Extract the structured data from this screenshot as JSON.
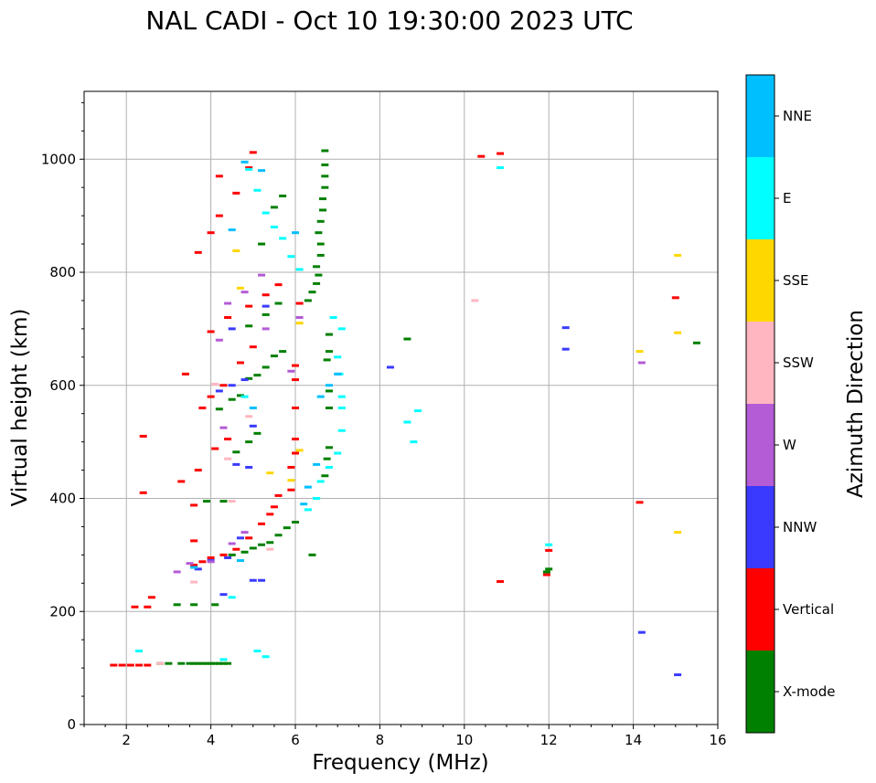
{
  "chart_data": {
    "type": "scatter",
    "title": "NAL CADI - Oct 10 19:30:00 2023 UTC",
    "xlabel": "Frequency (MHz)",
    "ylabel": "Virtual height (km)",
    "xlim": [
      1,
      16
    ],
    "ylim": [
      0,
      1120
    ],
    "xticks": [
      2,
      4,
      6,
      8,
      10,
      12,
      14,
      16
    ],
    "yticks": [
      0,
      200,
      400,
      600,
      800,
      1000
    ],
    "grid": true,
    "colorbar": {
      "label": "Azimuth Direction",
      "categories": [
        "X-mode",
        "Vertical",
        "NNW",
        "W",
        "SSW",
        "SSE",
        "E",
        "NNE"
      ],
      "colors": [
        "#008000",
        "#ff0000",
        "#3a3aff",
        "#b45bd6",
        "#ffb6c1",
        "#ffd700",
        "#00ffff",
        "#00bfff"
      ]
    },
    "series": [
      {
        "name": "X-mode",
        "color": "#008000",
        "points": [
          [
            3.5,
            108
          ],
          [
            3.6,
            108
          ],
          [
            3.7,
            108
          ],
          [
            3.8,
            108
          ],
          [
            3.9,
            108
          ],
          [
            4.0,
            108
          ],
          [
            4.1,
            108
          ],
          [
            4.2,
            108
          ],
          [
            4.3,
            108
          ],
          [
            4.4,
            108
          ],
          [
            3.3,
            108
          ],
          [
            3.0,
            108
          ],
          [
            2.8,
            108
          ],
          [
            4.1,
            212
          ],
          [
            3.6,
            212
          ],
          [
            3.2,
            212
          ],
          [
            4.5,
            300
          ],
          [
            4.8,
            305
          ],
          [
            5.0,
            312
          ],
          [
            5.2,
            318
          ],
          [
            5.4,
            322
          ],
          [
            5.6,
            335
          ],
          [
            5.8,
            348
          ],
          [
            6.0,
            358
          ],
          [
            3.9,
            395
          ],
          [
            4.3,
            395
          ],
          [
            4.6,
            482
          ],
          [
            4.9,
            500
          ],
          [
            5.1,
            515
          ],
          [
            4.2,
            558
          ],
          [
            4.5,
            575
          ],
          [
            4.7,
            582
          ],
          [
            4.9,
            612
          ],
          [
            5.1,
            618
          ],
          [
            5.3,
            632
          ],
          [
            5.5,
            652
          ],
          [
            5.7,
            660
          ],
          [
            4.9,
            705
          ],
          [
            5.3,
            725
          ],
          [
            5.6,
            745
          ],
          [
            5.2,
            850
          ],
          [
            5.5,
            915
          ],
          [
            5.7,
            935
          ],
          [
            6.3,
            750
          ],
          [
            6.4,
            765
          ],
          [
            6.5,
            780
          ],
          [
            6.55,
            795
          ],
          [
            6.5,
            810
          ],
          [
            6.6,
            830
          ],
          [
            6.6,
            850
          ],
          [
            6.55,
            870
          ],
          [
            6.6,
            890
          ],
          [
            6.65,
            910
          ],
          [
            6.65,
            930
          ],
          [
            6.7,
            950
          ],
          [
            6.7,
            970
          ],
          [
            6.7,
            990
          ],
          [
            6.7,
            1015
          ],
          [
            6.7,
            440
          ],
          [
            6.75,
            470
          ],
          [
            6.8,
            490
          ],
          [
            6.8,
            560
          ],
          [
            6.8,
            590
          ],
          [
            6.75,
            645
          ],
          [
            6.8,
            660
          ],
          [
            6.8,
            690
          ],
          [
            6.4,
            300
          ],
          [
            8.65,
            682
          ],
          [
            11.95,
            270
          ],
          [
            12.0,
            275
          ],
          [
            15.5,
            675
          ]
        ]
      },
      {
        "name": "Vertical",
        "color": "#ff0000",
        "points": [
          [
            1.7,
            105
          ],
          [
            1.9,
            105
          ],
          [
            2.1,
            105
          ],
          [
            2.3,
            105
          ],
          [
            2.5,
            105
          ],
          [
            2.2,
            208
          ],
          [
            2.5,
            208
          ],
          [
            3.6,
            282
          ],
          [
            3.8,
            288
          ],
          [
            4.0,
            295
          ],
          [
            4.3,
            300
          ],
          [
            4.6,
            310
          ],
          [
            4.9,
            330
          ],
          [
            5.2,
            355
          ],
          [
            5.4,
            372
          ],
          [
            5.5,
            385
          ],
          [
            5.6,
            405
          ],
          [
            3.6,
            388
          ],
          [
            2.4,
            510
          ],
          [
            3.3,
            430
          ],
          [
            3.7,
            450
          ],
          [
            4.1,
            488
          ],
          [
            4.4,
            505
          ],
          [
            3.8,
            560
          ],
          [
            4.0,
            580
          ],
          [
            4.3,
            600
          ],
          [
            4.7,
            640
          ],
          [
            5.0,
            668
          ],
          [
            4.0,
            695
          ],
          [
            4.4,
            720
          ],
          [
            4.9,
            740
          ],
          [
            5.3,
            760
          ],
          [
            5.6,
            778
          ],
          [
            3.7,
            835
          ],
          [
            4.0,
            870
          ],
          [
            4.2,
            900
          ],
          [
            4.6,
            940
          ],
          [
            4.9,
            985
          ],
          [
            5.0,
            1012
          ],
          [
            4.2,
            970
          ],
          [
            5.9,
            415
          ],
          [
            5.9,
            455
          ],
          [
            6.0,
            480
          ],
          [
            6.0,
            505
          ],
          [
            6.0,
            560
          ],
          [
            6.0,
            610
          ],
          [
            6.1,
            745
          ],
          [
            6.0,
            635
          ],
          [
            2.4,
            410
          ],
          [
            3.4,
            620
          ],
          [
            3.6,
            325
          ],
          [
            2.6,
            225
          ],
          [
            10.4,
            1005
          ],
          [
            10.85,
            1010
          ],
          [
            10.85,
            253
          ],
          [
            11.95,
            265
          ],
          [
            12.0,
            308
          ],
          [
            14.15,
            393
          ],
          [
            15.0,
            755
          ]
        ]
      },
      {
        "name": "NNW",
        "color": "#3a3aff",
        "points": [
          [
            3.7,
            275
          ],
          [
            4.0,
            290
          ],
          [
            4.4,
            295
          ],
          [
            4.7,
            330
          ],
          [
            5.0,
            255
          ],
          [
            5.2,
            255
          ],
          [
            4.6,
            460
          ],
          [
            4.9,
            455
          ],
          [
            4.2,
            590
          ],
          [
            4.5,
            600
          ],
          [
            4.8,
            610
          ],
          [
            5.0,
            528
          ],
          [
            4.3,
            230
          ],
          [
            4.5,
            700
          ],
          [
            5.3,
            740
          ],
          [
            8.25,
            632
          ],
          [
            12.4,
            702
          ],
          [
            12.4,
            664
          ],
          [
            14.2,
            163
          ],
          [
            15.05,
            88
          ]
        ]
      },
      {
        "name": "W",
        "color": "#b45bd6",
        "points": [
          [
            3.2,
            270
          ],
          [
            3.5,
            285
          ],
          [
            4.0,
            288
          ],
          [
            4.5,
            320
          ],
          [
            4.2,
            680
          ],
          [
            4.4,
            745
          ],
          [
            4.8,
            765
          ],
          [
            5.2,
            795
          ],
          [
            4.3,
            525
          ],
          [
            5.9,
            625
          ],
          [
            6.1,
            720
          ],
          [
            4.8,
            340
          ],
          [
            14.2,
            640
          ],
          [
            5.3,
            700
          ]
        ]
      },
      {
        "name": "SSW",
        "color": "#ffb6c1",
        "points": [
          [
            4.9,
            545
          ],
          [
            4.1,
            602
          ],
          [
            3.6,
            252
          ],
          [
            4.4,
            470
          ],
          [
            2.8,
            108
          ],
          [
            5.4,
            310
          ],
          [
            10.25,
            750
          ],
          [
            4.5,
            395
          ]
        ]
      },
      {
        "name": "SSE",
        "color": "#ffd700",
        "points": [
          [
            4.6,
            838
          ],
          [
            5.4,
            445
          ],
          [
            5.9,
            432
          ],
          [
            6.1,
            485
          ],
          [
            4.7,
            772
          ],
          [
            6.1,
            710
          ],
          [
            15.05,
            830
          ],
          [
            15.05,
            693
          ],
          [
            15.05,
            340
          ],
          [
            14.15,
            660
          ]
        ]
      },
      {
        "name": "E",
        "color": "#00ffff",
        "points": [
          [
            4.9,
            982
          ],
          [
            5.1,
            945
          ],
          [
            5.3,
            905
          ],
          [
            5.5,
            880
          ],
          [
            5.7,
            860
          ],
          [
            5.9,
            828
          ],
          [
            6.1,
            805
          ],
          [
            6.3,
            380
          ],
          [
            6.5,
            400
          ],
          [
            6.6,
            430
          ],
          [
            6.8,
            455
          ],
          [
            7.0,
            480
          ],
          [
            7.1,
            520
          ],
          [
            7.1,
            560
          ],
          [
            7.1,
            580
          ],
          [
            7.05,
            620
          ],
          [
            7.0,
            650
          ],
          [
            7.1,
            700
          ],
          [
            6.9,
            720
          ],
          [
            5.3,
            120
          ],
          [
            5.1,
            130
          ],
          [
            4.5,
            225
          ],
          [
            2.3,
            130
          ],
          [
            4.8,
            580
          ],
          [
            4.3,
            115
          ],
          [
            10.85,
            985
          ],
          [
            12.0,
            318
          ],
          [
            8.8,
            500
          ],
          [
            8.9,
            555
          ],
          [
            8.65,
            535
          ]
        ]
      },
      {
        "name": "NNE",
        "color": "#00bfff",
        "points": [
          [
            4.5,
            875
          ],
          [
            4.8,
            995
          ],
          [
            5.2,
            980
          ],
          [
            6.0,
            870
          ],
          [
            6.2,
            390
          ],
          [
            6.3,
            420
          ],
          [
            6.5,
            460
          ],
          [
            6.6,
            580
          ],
          [
            6.8,
            600
          ],
          [
            7.0,
            620
          ],
          [
            4.7,
            290
          ],
          [
            5.0,
            560
          ],
          [
            3.6,
            278
          ]
        ]
      }
    ]
  }
}
